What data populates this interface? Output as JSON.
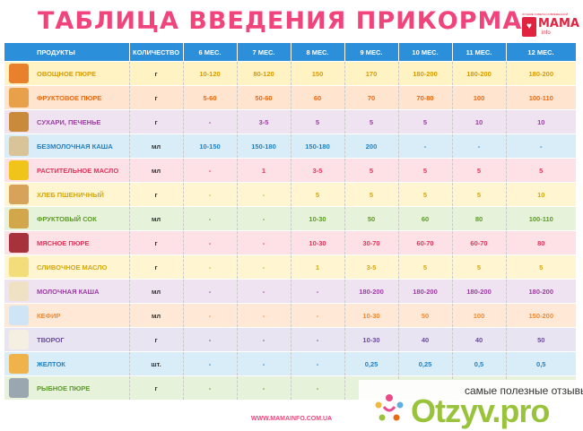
{
  "title": "ТАБЛИЦА ВВЕДЕНИЯ ПРИКОРМА",
  "logo": {
    "tagline": "ЛУЧШИЕ СОВЕТЫ СОВРЕМЕННОЙ МАМЕ",
    "word": "МАМА",
    "sub": "info"
  },
  "headers": [
    "ПРОДУКТЫ",
    "КОЛИЧЕСТВО",
    "6 МЕС.",
    "7 МЕС.",
    "8 МЕС.",
    "9 МЕС.",
    "10 МЕС.",
    "11 МЕС.",
    "12 МЕС."
  ],
  "rows": [
    {
      "name": "ОВОЩНОЕ ПЮРЕ",
      "unit": "г",
      "values": [
        "10-120",
        "80-120",
        "150",
        "170",
        "180-200",
        "180-200",
        "180-200"
      ],
      "bg": "#fff3c4",
      "color": "#d99b00",
      "icon_color": "#e9812c"
    },
    {
      "name": "ФРУКТОВОЕ ПЮРЕ",
      "unit": "г",
      "values": [
        "5-60",
        "50-60",
        "60",
        "70",
        "70-80",
        "100",
        "100-110"
      ],
      "bg": "#ffe4cf",
      "color": "#e86a12",
      "icon_color": "#e8a14a"
    },
    {
      "name": "СУХАРИ, ПЕЧЕНЬЕ",
      "unit": "г",
      "values": [
        "-",
        "3-5",
        "5",
        "5",
        "5",
        "10",
        "10"
      ],
      "bg": "#efe2f1",
      "color": "#9a3ea0",
      "icon_color": "#c98a3b"
    },
    {
      "name": "БЕЗМОЛОЧНАЯ КАША",
      "unit": "мл",
      "values": [
        "10-150",
        "150-180",
        "150-180",
        "200",
        "-",
        "-",
        "-"
      ],
      "bg": "#d9edf9",
      "color": "#1f7fc1",
      "icon_color": "#d9c49a"
    },
    {
      "name": "РАСТИТЕЛЬНОЕ МАСЛО",
      "unit": "мл",
      "values": [
        "-",
        "1",
        "3-5",
        "5",
        "5",
        "5",
        "5"
      ],
      "bg": "#fde1e6",
      "color": "#e3335a",
      "icon_color": "#f0c419"
    },
    {
      "name": "ХЛЕБ ПШЕНИЧНЫЙ",
      "unit": "г",
      "values": [
        "-",
        "-",
        "5",
        "5",
        "5",
        "5",
        "10"
      ],
      "bg": "#fff6d1",
      "color": "#d4a60c",
      "icon_color": "#d7a35a"
    },
    {
      "name": "ФРУКТОВЫЙ СОК",
      "unit": "мл",
      "values": [
        "-",
        "-",
        "10-30",
        "50",
        "60",
        "80",
        "100-110"
      ],
      "bg": "#e6f2d9",
      "color": "#5c9a27",
      "icon_color": "#d2a74b"
    },
    {
      "name": "МЯСНОЕ ПЮРЕ",
      "unit": "г",
      "values": [
        "-",
        "-",
        "10-30",
        "30-70",
        "60-70",
        "60-70",
        "80"
      ],
      "bg": "#fde1e6",
      "color": "#e3335a",
      "icon_color": "#a8323c"
    },
    {
      "name": "СЛИВОЧНОЕ МАСЛО",
      "unit": "г",
      "values": [
        "-",
        "-",
        "1",
        "3-5",
        "5",
        "5",
        "5"
      ],
      "bg": "#fff6d1",
      "color": "#d4a60c",
      "icon_color": "#f3dc7a"
    },
    {
      "name": "МОЛОЧНАЯ КАША",
      "unit": "мл",
      "values": [
        "-",
        "-",
        "-",
        "180-200",
        "180-200",
        "180-200",
        "180-200"
      ],
      "bg": "#efe2f1",
      "color": "#9a3ea0",
      "icon_color": "#efe2c4"
    },
    {
      "name": "КЕФИР",
      "unit": "мл",
      "values": [
        "-",
        "-",
        "-",
        "10-30",
        "50",
        "100",
        "150-200"
      ],
      "bg": "#ffe9d6",
      "color": "#f08a32",
      "icon_color": "#cfe4f4"
    },
    {
      "name": "ТВОРОГ",
      "unit": "г",
      "values": [
        "-",
        "-",
        "-",
        "10-30",
        "40",
        "40",
        "50"
      ],
      "bg": "#e9e4f1",
      "color": "#6a4c9a",
      "icon_color": "#f4efe0"
    },
    {
      "name": "ЖЕЛТОК",
      "unit": "шт.",
      "values": [
        "-",
        "-",
        "-",
        "0,25",
        "0,25",
        "0,5",
        "0,5"
      ],
      "bg": "#d9edf9",
      "color": "#1f7fc1",
      "icon_color": "#f0b24a"
    },
    {
      "name": "РЫБНОЕ ПЮРЕ",
      "unit": "г",
      "values": [
        "-",
        "-",
        "-",
        "",
        "",
        "",
        ""
      ],
      "bg": "#e6f2d9",
      "color": "#5c9a27",
      "icon_color": "#9aa6b0"
    }
  ],
  "footer": "WWW.MAMAINFO.COM.UA",
  "watermark": {
    "tagline": "самые полезные отзывы",
    "brand": "Otzyv.pro"
  }
}
